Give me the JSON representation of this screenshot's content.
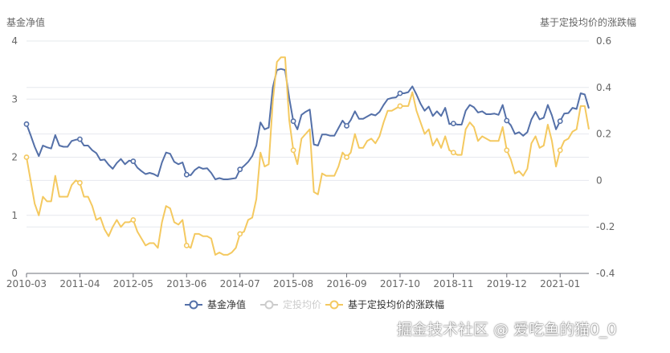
{
  "chart_data": {
    "type": "line",
    "left_axis_title": "基金净值",
    "right_axis_title": "基于定投均价的涨跌幅",
    "y_left_lim": [
      0,
      4
    ],
    "y_left_ticks": [
      "0",
      "1",
      "2",
      "3",
      "4"
    ],
    "y_right_lim": [
      -0.4,
      0.6
    ],
    "y_right_ticks": [
      "-0.4",
      "-0.2",
      "0",
      "0.2",
      "0.4",
      "0.6"
    ],
    "x_tick_labels": [
      "2010-03",
      "2011-04",
      "2012-05",
      "2013-06",
      "2014-07",
      "2015-08",
      "2016-09",
      "2017-10",
      "2018-11",
      "2019-12",
      "2021-01"
    ],
    "grid": true,
    "legend_position": "bottom-center",
    "legend": [
      "基金净值",
      "定投均价",
      "基于定投均价的涨跌幅"
    ],
    "x_count": 138,
    "series": [
      {
        "name": "基金净值",
        "axis": "left",
        "color": "#5470a8",
        "marker_indices": [
          0,
          13,
          26,
          39,
          52,
          65,
          78,
          91,
          104,
          117,
          130
        ],
        "values": [
          2.57,
          2.38,
          2.18,
          2.02,
          2.2,
          2.17,
          2.15,
          2.38,
          2.2,
          2.18,
          2.18,
          2.28,
          2.3,
          2.31,
          2.2,
          2.2,
          2.12,
          2.07,
          1.95,
          1.96,
          1.87,
          1.8,
          1.9,
          1.97,
          1.88,
          1.94,
          1.93,
          1.82,
          1.76,
          1.71,
          1.73,
          1.71,
          1.67,
          1.91,
          2.08,
          2.06,
          1.92,
          1.88,
          1.91,
          1.7,
          1.69,
          1.78,
          1.83,
          1.8,
          1.81,
          1.73,
          1.62,
          1.64,
          1.62,
          1.62,
          1.63,
          1.64,
          1.79,
          1.85,
          1.92,
          2.02,
          2.2,
          2.6,
          2.48,
          2.51,
          3.2,
          3.5,
          3.52,
          3.5,
          3.02,
          2.62,
          2.48,
          2.73,
          2.78,
          2.82,
          2.22,
          2.2,
          2.39,
          2.39,
          2.37,
          2.37,
          2.5,
          2.63,
          2.54,
          2.64,
          2.79,
          2.66,
          2.66,
          2.7,
          2.74,
          2.72,
          2.78,
          2.9,
          3.0,
          3.02,
          3.03,
          3.1,
          3.1,
          3.12,
          3.22,
          3.08,
          2.92,
          2.8,
          2.87,
          2.71,
          2.79,
          2.71,
          2.85,
          2.57,
          2.58,
          2.56,
          2.56,
          2.8,
          2.9,
          2.86,
          2.77,
          2.79,
          2.74,
          2.74,
          2.75,
          2.73,
          2.9,
          2.63,
          2.55,
          2.4,
          2.43,
          2.37,
          2.43,
          2.65,
          2.78,
          2.65,
          2.68,
          2.9,
          2.72,
          2.48,
          2.62,
          2.75,
          2.76,
          2.85,
          2.83,
          3.1,
          3.08,
          2.84
        ]
      },
      {
        "name": "定投均价",
        "axis": "left",
        "color": "#cccccc",
        "hidden": true,
        "values": []
      },
      {
        "name": "基于定投均价的涨跌幅",
        "axis": "right",
        "color": "#f4c960",
        "marker_indices": [
          0,
          13,
          26,
          39,
          52,
          65,
          78,
          91,
          104,
          117,
          130
        ],
        "values": [
          0.1,
          0.0,
          -0.1,
          -0.15,
          -0.07,
          -0.09,
          -0.09,
          0.02,
          -0.07,
          -0.07,
          -0.07,
          -0.02,
          0.0,
          -0.01,
          -0.07,
          -0.07,
          -0.11,
          -0.17,
          -0.16,
          -0.21,
          -0.24,
          -0.2,
          -0.17,
          -0.2,
          -0.18,
          -0.18,
          -0.17,
          -0.22,
          -0.25,
          -0.28,
          -0.27,
          -0.27,
          -0.29,
          -0.18,
          -0.11,
          -0.12,
          -0.18,
          -0.19,
          -0.17,
          -0.28,
          -0.29,
          -0.23,
          -0.23,
          -0.24,
          -0.24,
          -0.25,
          -0.32,
          -0.31,
          -0.32,
          -0.32,
          -0.31,
          -0.29,
          -0.23,
          -0.22,
          -0.17,
          -0.16,
          -0.08,
          0.12,
          0.06,
          0.07,
          0.34,
          0.51,
          0.53,
          0.53,
          0.26,
          0.13,
          0.07,
          0.18,
          0.2,
          0.22,
          -0.05,
          -0.06,
          0.03,
          0.02,
          0.02,
          0.02,
          0.06,
          0.12,
          0.1,
          0.12,
          0.2,
          0.14,
          0.14,
          0.17,
          0.18,
          0.16,
          0.19,
          0.25,
          0.3,
          0.3,
          0.31,
          0.32,
          0.32,
          0.32,
          0.38,
          0.3,
          0.25,
          0.2,
          0.22,
          0.15,
          0.18,
          0.14,
          0.19,
          0.13,
          0.12,
          0.11,
          0.11,
          0.22,
          0.25,
          0.23,
          0.17,
          0.19,
          0.18,
          0.17,
          0.17,
          0.17,
          0.23,
          0.13,
          0.09,
          0.03,
          0.04,
          0.02,
          0.05,
          0.16,
          0.19,
          0.14,
          0.15,
          0.24,
          0.17,
          0.06,
          0.13,
          0.17,
          0.18,
          0.21,
          0.22,
          0.32,
          0.32,
          0.22
        ]
      }
    ]
  },
  "watermark": "掘金技术社区 @ 爱吃鱼的猫0_0"
}
